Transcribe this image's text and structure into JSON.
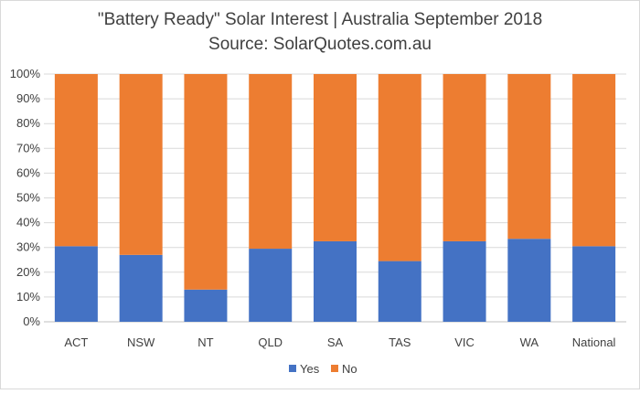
{
  "chart_data": {
    "type": "bar",
    "stacked": "100%",
    "title": "\"Battery Ready\" Solar Interest | Australia September 2018",
    "subtitle": "Source: SolarQuotes.com.au",
    "xlabel": "",
    "ylabel": "",
    "categories": [
      "ACT",
      "NSW",
      "NT",
      "QLD",
      "SA",
      "TAS",
      "VIC",
      "WA",
      "National"
    ],
    "series": [
      {
        "name": "Yes",
        "color": "#4472c4",
        "values": [
          30.5,
          27,
          13,
          29.5,
          32.5,
          24.5,
          32.5,
          33.5,
          30.5
        ]
      },
      {
        "name": "No",
        "color": "#ed7d31",
        "values": [
          69.5,
          73,
          87,
          70.5,
          67.5,
          75.5,
          67.5,
          66.5,
          69.5
        ]
      }
    ],
    "ylim": [
      0,
      100
    ],
    "yticks": [
      "0%",
      "10%",
      "20%",
      "30%",
      "40%",
      "50%",
      "60%",
      "70%",
      "80%",
      "90%",
      "100%"
    ],
    "grid": true,
    "legend_position": "bottom"
  }
}
